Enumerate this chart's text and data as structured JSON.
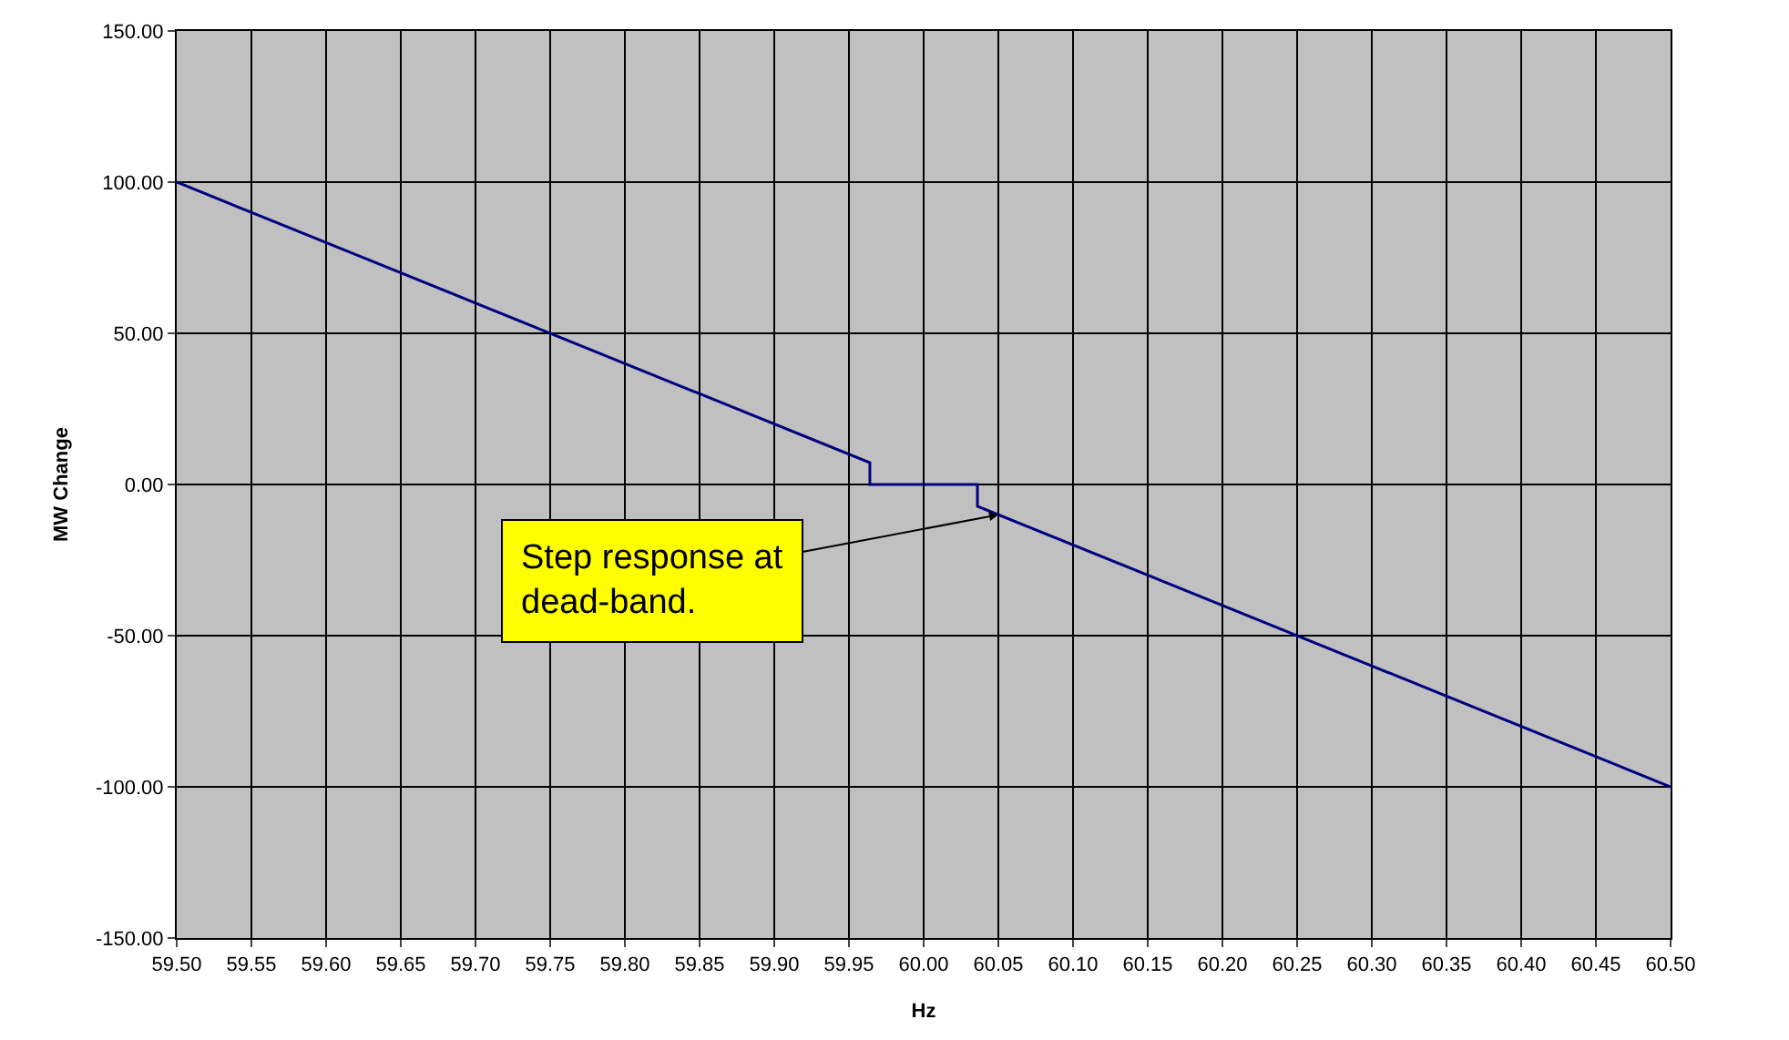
{
  "chart_data": {
    "type": "line",
    "xlabel": "Hz",
    "ylabel": "MW Change",
    "x": [
      59.5,
      59.964,
      59.964,
      60.036,
      60.036,
      60.5
    ],
    "series": [
      {
        "color": "#000080",
        "values": [
          100,
          7.2,
          0,
          0,
          -7.2,
          -100
        ]
      }
    ],
    "xlim": [
      59.5,
      60.5
    ],
    "xticks": [
      {
        "value": 59.5,
        "label": "59.50"
      },
      {
        "value": 59.55,
        "label": "59.55"
      },
      {
        "value": 59.6,
        "label": "59.60"
      },
      {
        "value": 59.65,
        "label": "59.65"
      },
      {
        "value": 59.7,
        "label": "59.70"
      },
      {
        "value": 59.75,
        "label": "59.75"
      },
      {
        "value": 59.8,
        "label": "59.80"
      },
      {
        "value": 59.85,
        "label": "59.85"
      },
      {
        "value": 59.9,
        "label": "59.90"
      },
      {
        "value": 59.95,
        "label": "59.95"
      },
      {
        "value": 60.0,
        "label": "60.00"
      },
      {
        "value": 60.05,
        "label": "60.05"
      },
      {
        "value": 60.1,
        "label": "60.10"
      },
      {
        "value": 60.15,
        "label": "60.15"
      },
      {
        "value": 60.2,
        "label": "60.20"
      },
      {
        "value": 60.25,
        "label": "60.25"
      },
      {
        "value": 60.3,
        "label": "60.30"
      },
      {
        "value": 60.35,
        "label": "60.35"
      },
      {
        "value": 60.4,
        "label": "60.40"
      },
      {
        "value": 60.45,
        "label": "60.45"
      },
      {
        "value": 60.5,
        "label": "60.50"
      }
    ],
    "ylim": [
      -150,
      150
    ],
    "yticks": [
      {
        "value": -150,
        "label": "-150.00"
      },
      {
        "value": -100,
        "label": "-100.00"
      },
      {
        "value": -50,
        "label": "-50.00"
      },
      {
        "value": 0,
        "label": "0.00"
      },
      {
        "value": 50,
        "label": "50.00"
      },
      {
        "value": 100,
        "label": "100.00"
      },
      {
        "value": 150,
        "label": "150.00"
      }
    ],
    "grid": true,
    "marker": "none",
    "line_style": "solid",
    "annotations": [
      {
        "text": "Step response at\ndead-band.",
        "x": 60.05,
        "y": -10
      }
    ]
  }
}
